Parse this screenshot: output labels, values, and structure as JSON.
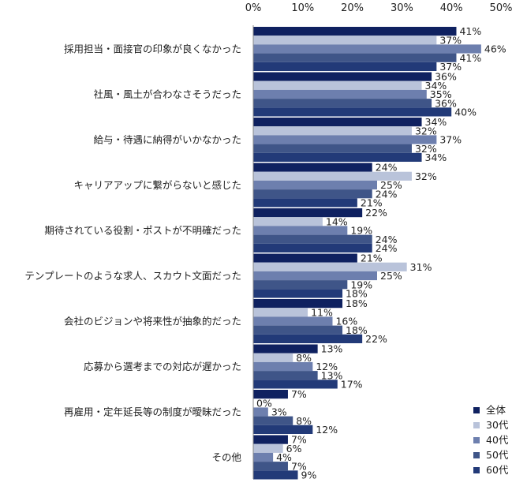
{
  "chart_data": {
    "type": "bar",
    "orientation": "horizontal",
    "title": "",
    "xlabel": "",
    "ylabel": "",
    "xlim": [
      0,
      50
    ],
    "x_ticks": [
      "0%",
      "10%",
      "20%",
      "30%",
      "40%",
      "50%"
    ],
    "x_tick_values": [
      0,
      10,
      20,
      30,
      40,
      50
    ],
    "value_suffix": "%",
    "grid": false,
    "legend_position": "bottom-right",
    "categories": [
      "採用担当・面接官の印象が良くなかった",
      "社風・風土が合わなさそうだった",
      "給与・待遇に納得がいかなかった",
      "キャリアアップに繋がらないと感じた",
      "期待されている役割・ポストが不明確だった",
      "テンプレートのような求人、スカウト文面だった",
      "会社のビジョンや将来性が抽象的だった",
      "応募から選考までの対応が遅かった",
      "再雇用・定年延長等の制度が曖昧だった",
      "その他"
    ],
    "series": [
      {
        "name": "全体",
        "color": "#0f2160",
        "values": [
          41,
          36,
          34,
          24,
          22,
          21,
          18,
          13,
          7,
          7
        ]
      },
      {
        "name": "30代",
        "color": "#b9c3da",
        "values": [
          37,
          34,
          32,
          32,
          14,
          31,
          11,
          8,
          0,
          6
        ]
      },
      {
        "name": "40代",
        "color": "#6d7fae",
        "values": [
          46,
          35,
          37,
          25,
          19,
          25,
          16,
          12,
          3,
          4
        ]
      },
      {
        "name": "50代",
        "color": "#3f5588",
        "values": [
          41,
          36,
          32,
          24,
          24,
          19,
          18,
          13,
          8,
          7
        ]
      },
      {
        "name": "60代",
        "color": "#223a78",
        "values": [
          37,
          40,
          34,
          21,
          24,
          18,
          22,
          17,
          12,
          9
        ]
      }
    ]
  }
}
